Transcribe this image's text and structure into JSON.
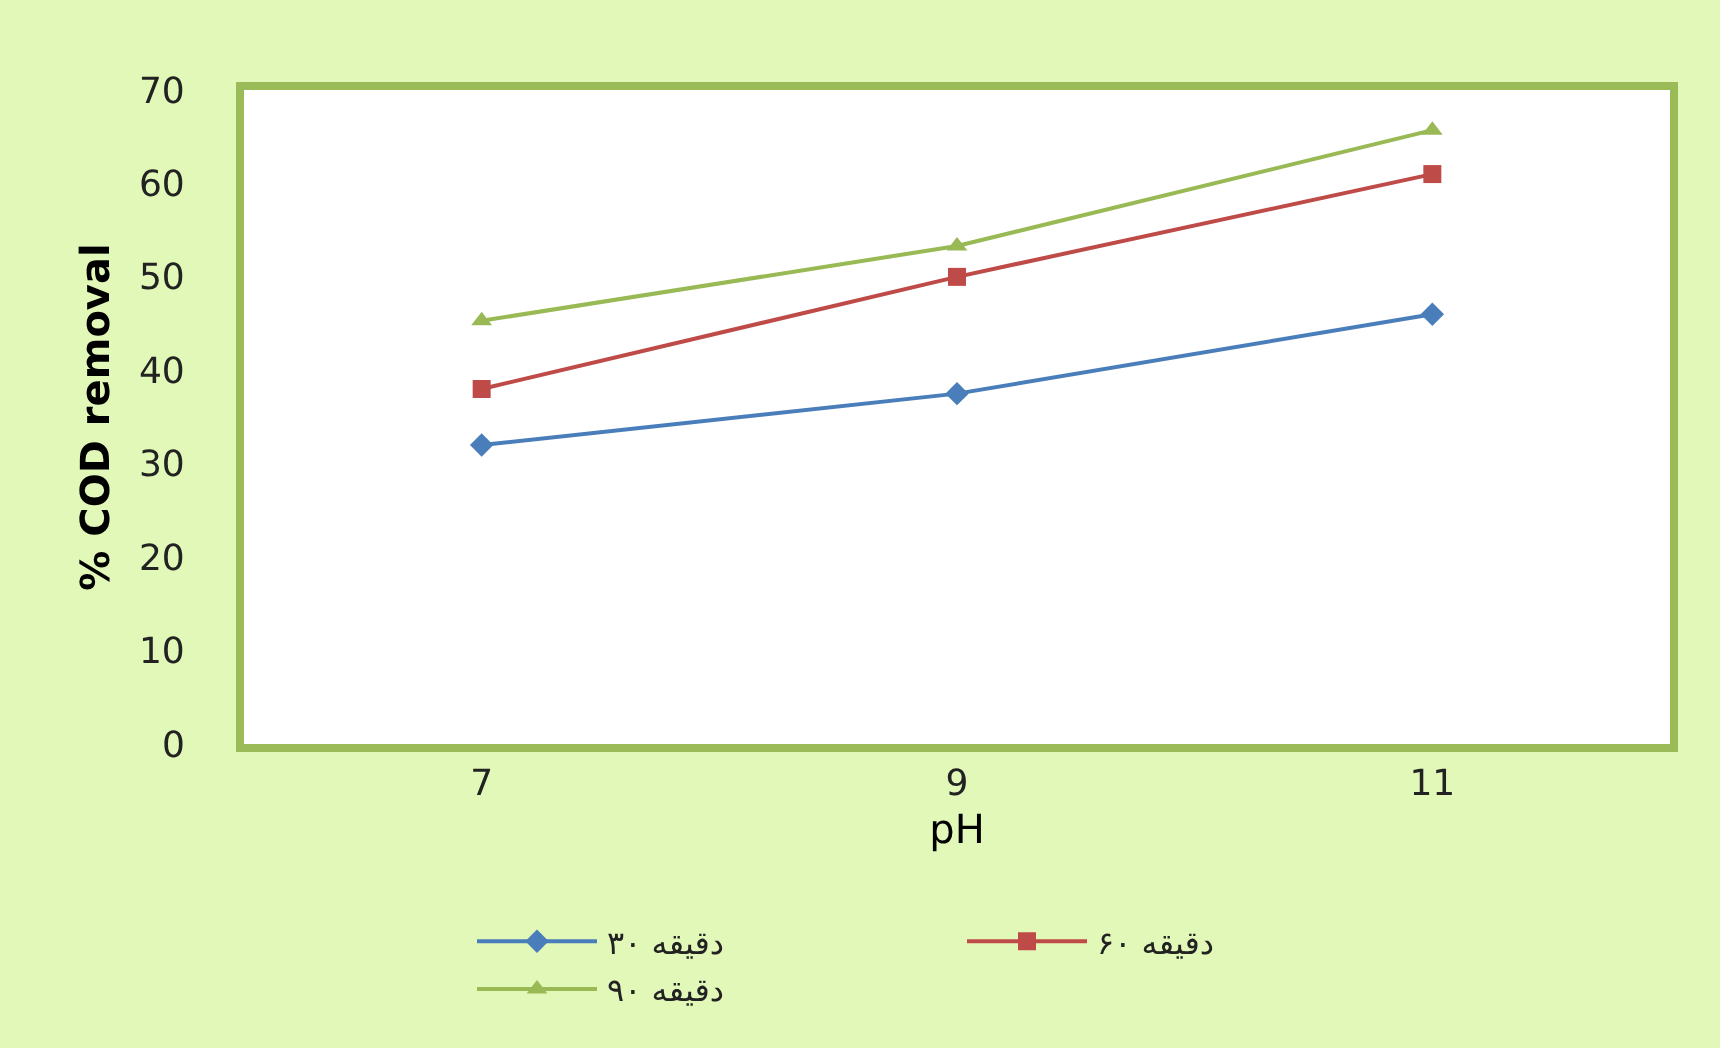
{
  "chart_data": {
    "type": "line",
    "xlabel": "pH",
    "ylabel": "% COD removal",
    "categories": [
      "7",
      "9",
      "11"
    ],
    "series": [
      {
        "name": "۳۰ دقیقه",
        "color": "#4a7ebb",
        "marker": "diamond",
        "values": [
          32,
          37.5,
          46
        ]
      },
      {
        "name": "۶۰ دقیقه",
        "color": "#be4b48",
        "marker": "square",
        "values": [
          38,
          50,
          61
        ]
      },
      {
        "name": "۹۰ دقیقه",
        "color": "#98b954",
        "marker": "triangle",
        "values": [
          45.3,
          53.3,
          65.7
        ]
      }
    ],
    "ylim": [
      0,
      70
    ],
    "yticks": [
      0,
      10,
      20,
      30,
      40,
      50,
      60,
      70
    ],
    "legend": "bottom",
    "line_style": "solid"
  }
}
